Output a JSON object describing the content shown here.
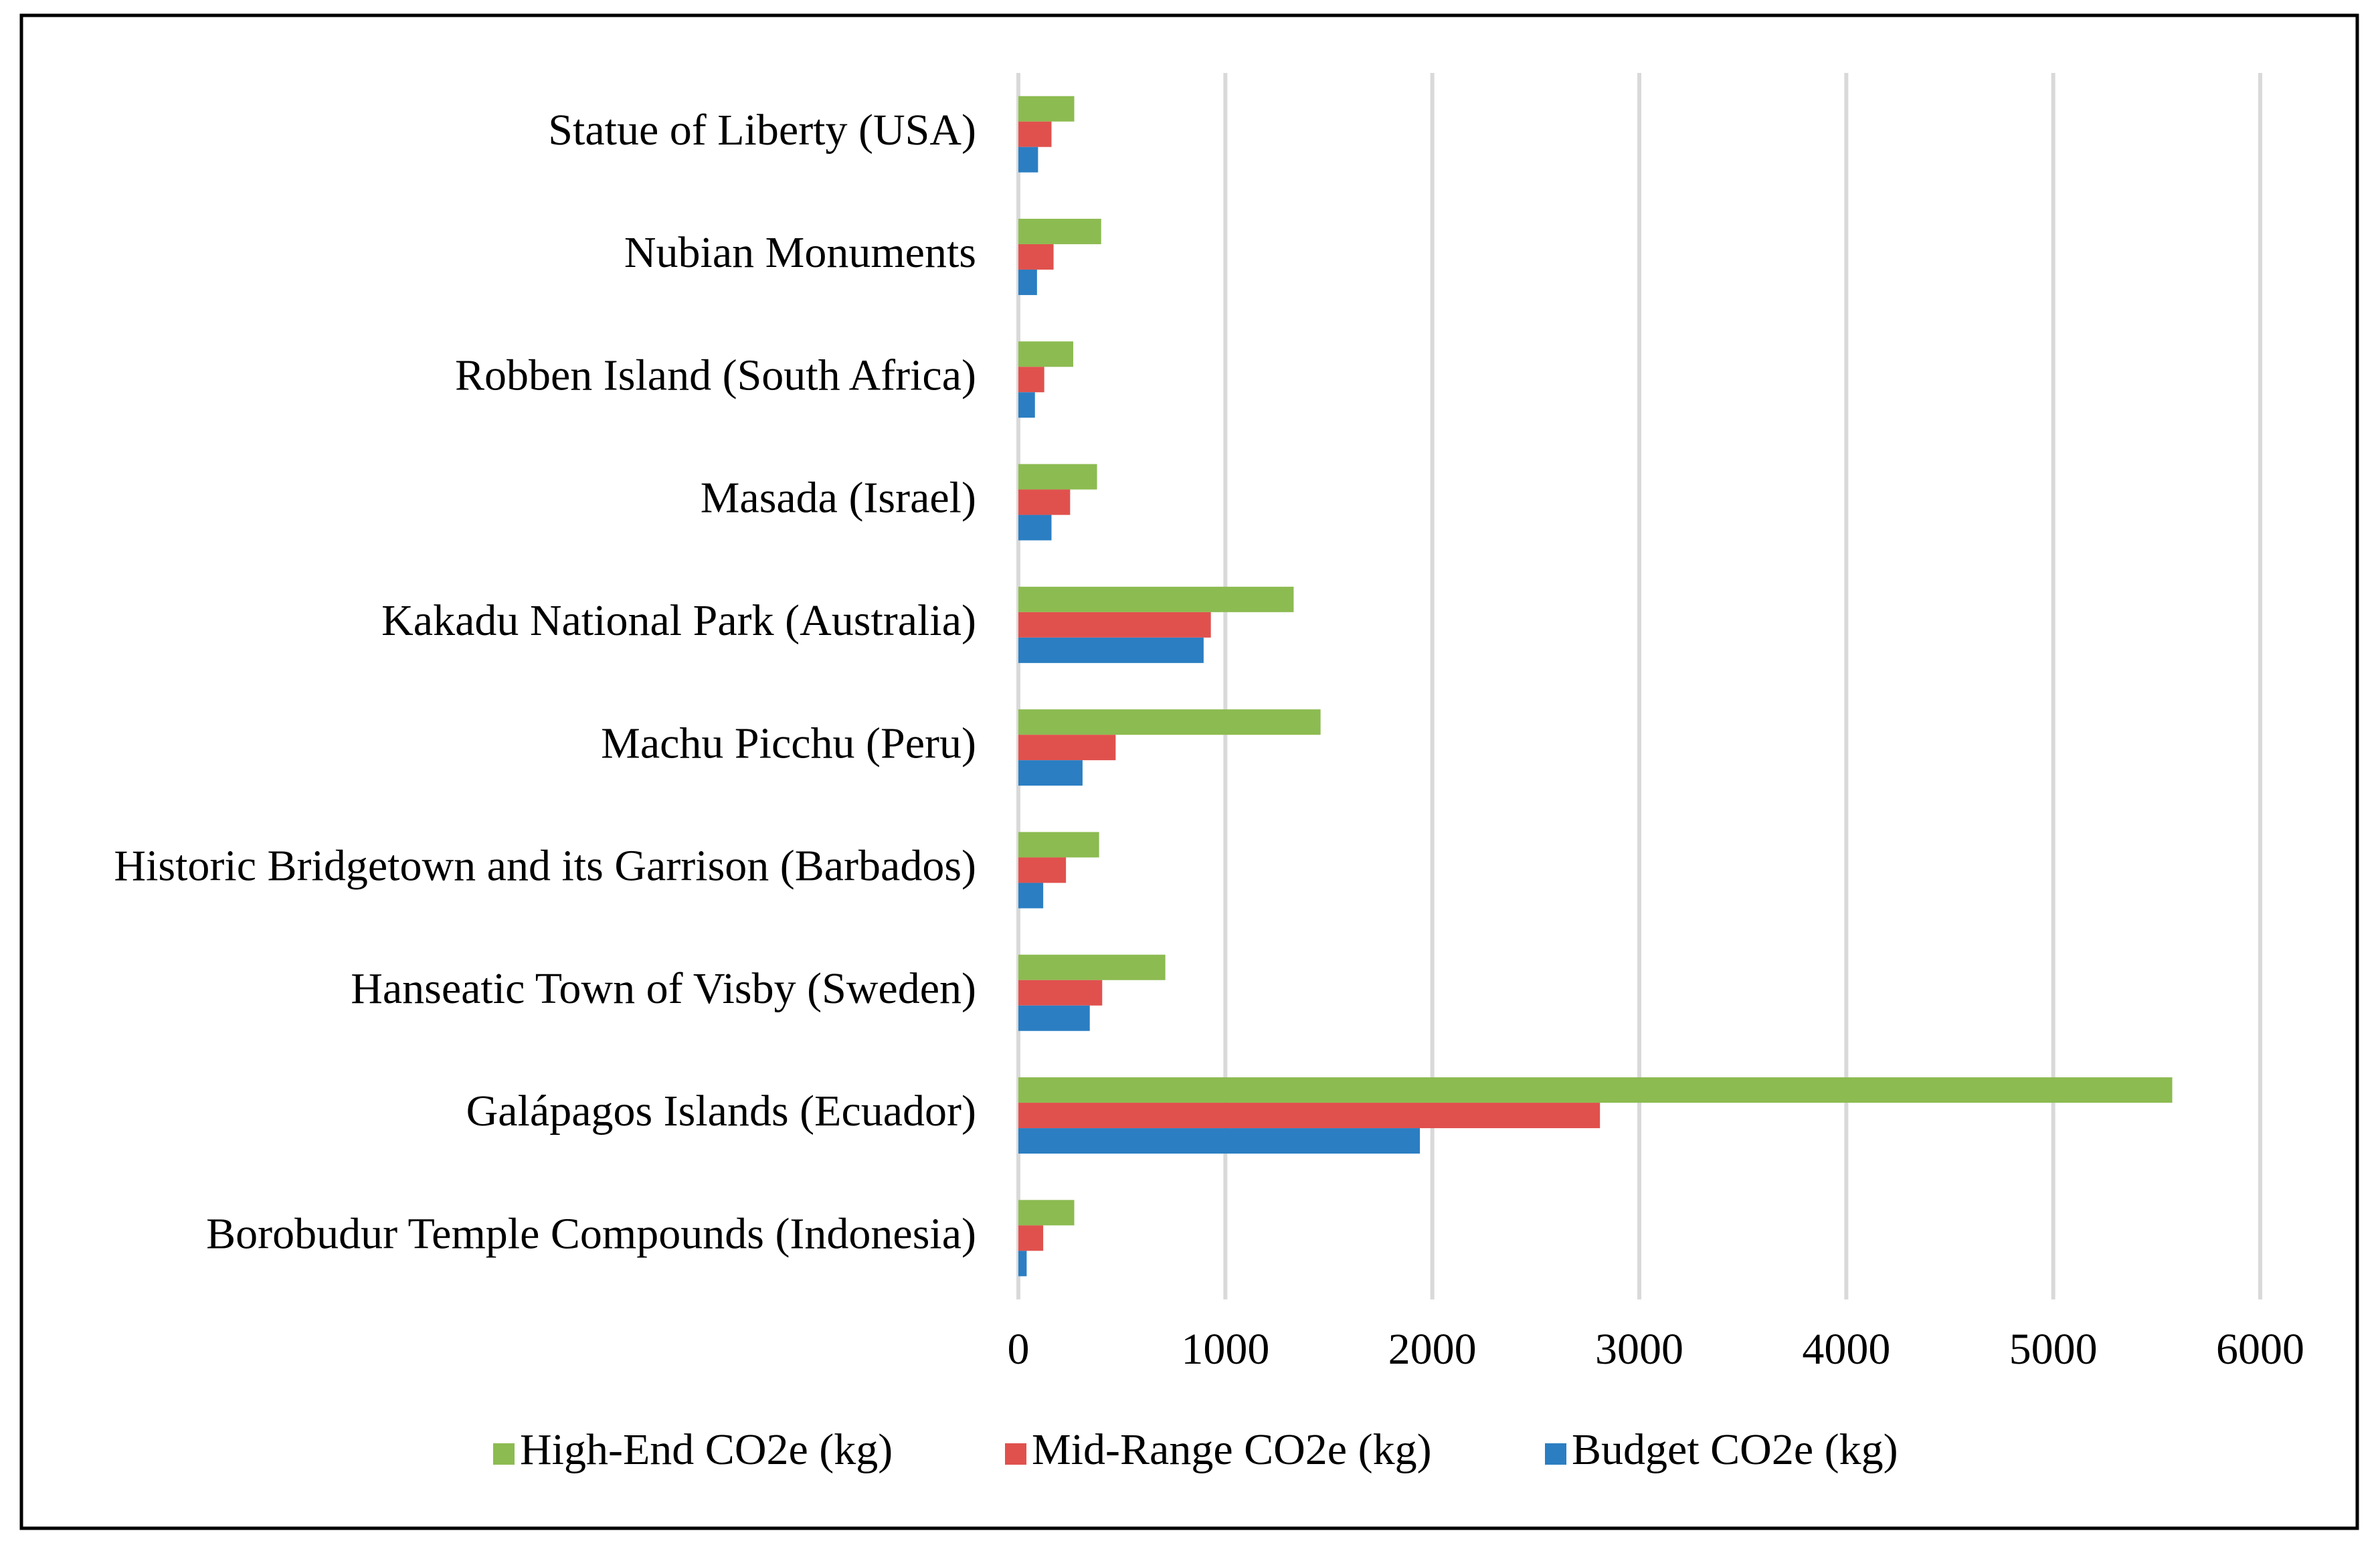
{
  "chart_data": {
    "type": "bar",
    "orientation": "horizontal",
    "categories": [
      "Statue of Liberty (USA)",
      "Nubian Monuments",
      "Robben Island (South Africa)",
      "Masada (Israel)",
      "Kakadu National Park (Australia)",
      "Machu Picchu (Peru)",
      "Historic Bridgetown and its Garrison (Barbados)",
      "Hanseatic Town of Visby (Sweden)",
      "Galápagos Islands (Ecuador)",
      "Borobudur Temple Compounds (Indonesia)"
    ],
    "series": [
      {
        "name": "High-End CO2e (kg)",
        "color": "#8cbb51",
        "values": [
          270,
          400,
          265,
          380,
          1330,
          1460,
          390,
          710,
          5575,
          270
        ]
      },
      {
        "name": "Mid-Range CO2e (kg)",
        "color": "#e0514d",
        "values": [
          160,
          170,
          125,
          250,
          930,
          470,
          230,
          405,
          2810,
          120
        ]
      },
      {
        "name": "Budget CO2e (kg)",
        "color": "#2b7ec2",
        "values": [
          95,
          90,
          80,
          160,
          895,
          310,
          120,
          345,
          1940,
          40
        ]
      }
    ],
    "xlim": [
      0,
      6000
    ],
    "xticks": [
      0,
      1000,
      2000,
      3000,
      4000,
      5000,
      6000
    ],
    "grid": true,
    "legend": "bottom"
  }
}
